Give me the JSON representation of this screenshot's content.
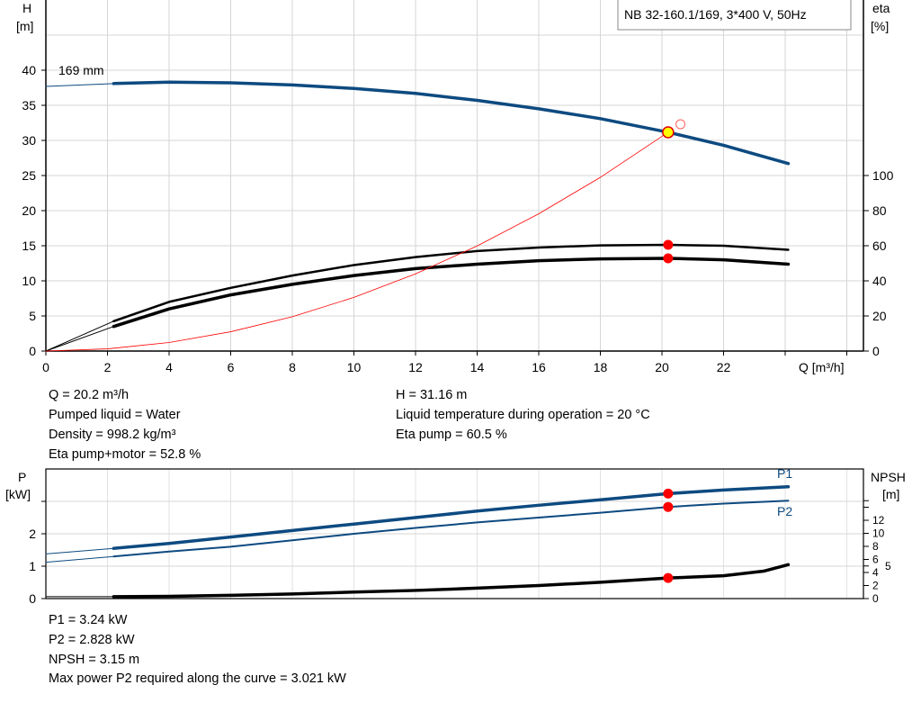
{
  "chart_data": [
    {
      "type": "line",
      "title": "NB 32-160.1/169, 3*400 V, 50Hz",
      "xlabel": "Q [m³/h]",
      "ylabel_left": [
        "H",
        "[m]"
      ],
      "ylabel_right": [
        "eta",
        "[%]"
      ],
      "xlim": [
        0,
        26
      ],
      "ylim_left": [
        0,
        45
      ],
      "ylim_right": [
        0,
        100
      ],
      "x_ticks": [
        "0",
        "2",
        "4",
        "6",
        "8",
        "10",
        "12",
        "14",
        "16",
        "18",
        "20",
        "22"
      ],
      "y_ticks_left": [
        "0",
        "5",
        "10",
        "15",
        "20",
        "25",
        "30",
        "35",
        "40"
      ],
      "y_ticks_right": [
        "0",
        "20",
        "40",
        "60",
        "80",
        "100"
      ],
      "grid": true,
      "curve_label": "169 mm",
      "series": [
        {
          "key": "H",
          "axis": "left",
          "color": "#0d4a80",
          "x": [
            0,
            2.2,
            4,
            6,
            8,
            10,
            12,
            14,
            16,
            18,
            20.2,
            22,
            24.1
          ],
          "y": [
            37.7,
            38.1,
            38.3,
            38.2,
            37.9,
            37.4,
            36.7,
            35.7,
            34.5,
            33.1,
            31.16,
            29.3,
            26.7
          ]
        },
        {
          "key": "eta_pump",
          "axis": "right",
          "color": "#000000",
          "x": [
            0,
            2.2,
            4,
            6,
            8,
            10,
            12,
            14,
            16,
            18,
            20.2,
            22,
            24.1
          ],
          "y": [
            0,
            17,
            28,
            36,
            43,
            49,
            53.5,
            57,
            59,
            60.2,
            60.5,
            60,
            57.7
          ]
        },
        {
          "key": "eta_pump_motor",
          "axis": "right",
          "color": "#000000",
          "x": [
            0,
            2.2,
            4,
            6,
            8,
            10,
            12,
            14,
            16,
            18,
            20.2,
            22,
            24.1
          ],
          "y": [
            0,
            14,
            24,
            32,
            38,
            43,
            47,
            49.5,
            51.5,
            52.5,
            52.8,
            52,
            49.5
          ]
        },
        {
          "key": "system_curve",
          "axis": "left",
          "color": "#ff0000",
          "x": [
            0,
            2,
            4,
            6,
            8,
            10,
            12,
            14,
            16,
            18,
            20.2
          ],
          "y": [
            0,
            0.31,
            1.22,
            2.75,
            4.89,
            7.64,
            11.0,
            14.97,
            19.55,
            24.74,
            31.16
          ]
        }
      ],
      "duty_point": {
        "Q": 20.2,
        "H": 31.16,
        "eta_pump": 60.5,
        "eta_pump_motor": 52.8
      },
      "requested_point": {
        "Q": 20.6,
        "H": 32.3
      }
    },
    {
      "type": "line",
      "ylabel_left": [
        "P",
        "[kW]"
      ],
      "ylabel_right": [
        "NPSH",
        "[m]"
      ],
      "xlim": [
        0,
        26
      ],
      "ylim_left": [
        0,
        4
      ],
      "y_ticks_left": [
        "0",
        "1",
        "2"
      ],
      "y_ticks_right": [
        "0",
        "2",
        "4",
        "5",
        "6",
        "8",
        "10",
        "12"
      ],
      "grid": true,
      "series": [
        {
          "name": "P1",
          "axis": "left",
          "color": "#0d4a80",
          "x": [
            0,
            2.2,
            4,
            6,
            8,
            10,
            12,
            14,
            16,
            18,
            20.2,
            22,
            24.1
          ],
          "y": [
            1.38,
            1.55,
            1.7,
            1.9,
            2.1,
            2.3,
            2.5,
            2.7,
            2.88,
            3.05,
            3.24,
            3.35,
            3.45
          ]
        },
        {
          "name": "P2",
          "axis": "left",
          "color": "#0d4a80",
          "x": [
            0,
            2.2,
            4,
            6,
            8,
            10,
            12,
            14,
            16,
            18,
            20.2,
            22,
            24.1
          ],
          "y": [
            1.12,
            1.3,
            1.45,
            1.6,
            1.8,
            2.0,
            2.18,
            2.35,
            2.5,
            2.65,
            2.828,
            2.93,
            3.02
          ]
        },
        {
          "key": "NPSH",
          "axis": "right",
          "color": "#000000",
          "x": [
            0,
            2.2,
            4,
            6,
            8,
            10,
            12,
            14,
            16,
            18,
            20.2,
            22,
            23.3,
            24.1
          ],
          "y": [
            0.3,
            0.3,
            0.35,
            0.5,
            0.7,
            1.0,
            1.25,
            1.6,
            2.0,
            2.5,
            3.15,
            3.5,
            4.2,
            5.2
          ]
        }
      ],
      "duty_point": {
        "Q": 20.2,
        "P1": 3.24,
        "P2": 2.828,
        "NPSH": 3.15
      }
    }
  ],
  "info_top": {
    "q": "Q = 20.2 m³/h",
    "liquid": "Pumped liquid = Water",
    "density": "Density = 998.2 kg/m³",
    "eta_pm": "Eta pump+motor = 52.8 %",
    "h": "H = 31.16 m",
    "temp": "Liquid temperature during operation = 20 °C",
    "eta_p": "Eta pump = 60.5 %"
  },
  "info_bottom": {
    "p1": "P1 = 3.24 kW",
    "p2": "P2 = 2.828 kW",
    "npsh": "NPSH = 3.15 m",
    "maxp": "Max power P2 required along the curve = 3.021 kW"
  }
}
